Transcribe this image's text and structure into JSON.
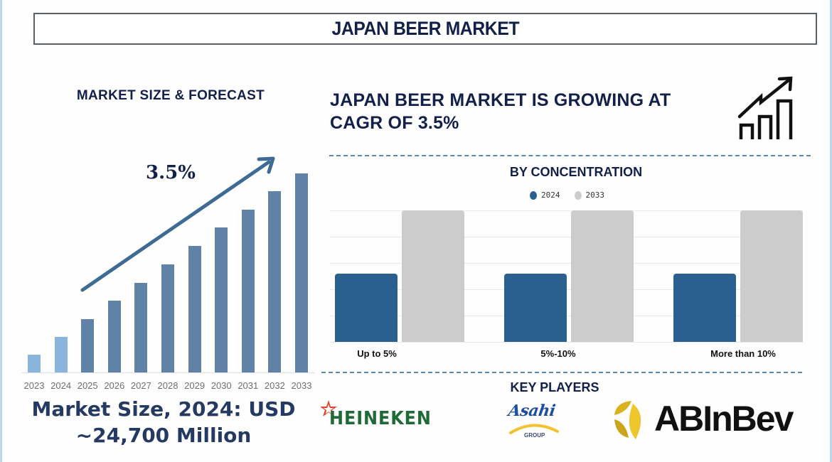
{
  "header": {
    "title": "JAPAN BEER MARKET"
  },
  "left_panel": {
    "heading": "MARKET SIZE & FORECAST",
    "cagr_label": "3.5%",
    "market_size_line1": "Market Size, 2024: USD",
    "market_size_line2": "~24,700 Million"
  },
  "right_panel": {
    "growth_line1": "JAPAN BEER MARKET IS GROWING AT",
    "growth_line2": "CAGR OF 3.5%",
    "growth_icon": "growth-chart-icon",
    "concentration_title": "BY CONCENTRATION",
    "key_players_title": "KEY PLAYERS",
    "key_players": [
      {
        "name": "HEINEKEN",
        "color": "#1e6b35",
        "accent": "#e8412b"
      },
      {
        "name": "Asahi",
        "sub": "GROUP",
        "color": "#1d4ea0",
        "accent": "#f2c230"
      },
      {
        "name": "ABInBev",
        "color": "#111111",
        "accent": "#d9b21e"
      }
    ]
  },
  "colors": {
    "title_text": "#12204a",
    "historical_bar": "#89b4dc",
    "forecast_bar": "#5f82a6",
    "arrow": "#3e6b93",
    "series_2024": "#2a6090",
    "series_2033": "#cccccc",
    "dash_line": "#5b89b3"
  },
  "chart_data": [
    {
      "type": "bar",
      "title": "MARKET SIZE & FORECAST",
      "categories": [
        "2023",
        "2024",
        "2025",
        "2026",
        "2027",
        "2028",
        "2029",
        "2030",
        "2031",
        "2032",
        "2033"
      ],
      "values": [
        25,
        50,
        75,
        101,
        126,
        152,
        178,
        204,
        229,
        255,
        280
      ],
      "value_units": "relative bar height (no axis shown)",
      "historical": [
        "2023",
        "2024"
      ],
      "forecast": [
        "2025",
        "2026",
        "2027",
        "2028",
        "2029",
        "2030",
        "2031",
        "2032",
        "2033"
      ],
      "annotation": "3.5% (CAGR arrow)",
      "xlabel": "",
      "ylabel": "",
      "grid": false,
      "legend": null
    },
    {
      "type": "bar",
      "title": "BY CONCENTRATION",
      "categories": [
        "Up to 5%",
        "5%-10%",
        "More than 10%"
      ],
      "series": [
        {
          "name": "2024",
          "values": [
            52,
            52,
            52
          ]
        },
        {
          "name": "2033",
          "values": [
            100,
            100,
            100
          ]
        }
      ],
      "value_units": "relative (% of max, no axis labels shown)",
      "ylim": [
        0,
        100
      ],
      "grid": true,
      "legend_position": "top"
    }
  ]
}
